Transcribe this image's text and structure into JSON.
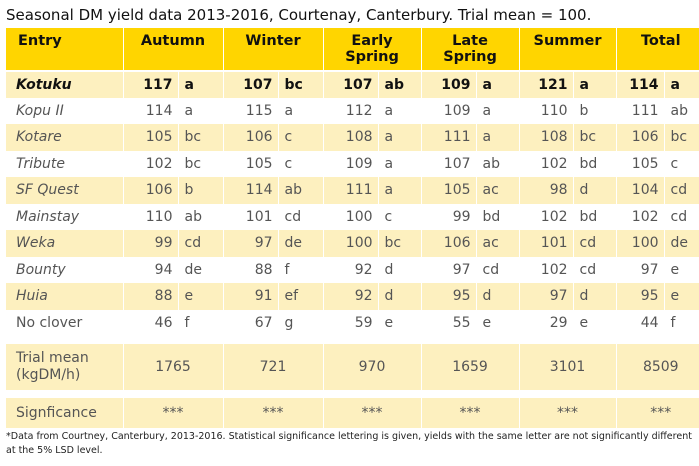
{
  "title": "Seasonal DM yield data 2013-2016, Courtenay, Canterbury. Trial mean = 100.",
  "header": {
    "entry": "Entry",
    "autumn": "Autumn",
    "winter": "Winter",
    "early_spring": [
      "Early",
      "Spring"
    ],
    "late_spring": [
      "Late",
      "Spring"
    ],
    "summer": "Summer",
    "total": "Total"
  },
  "rows": [
    {
      "entry": "Kotuku",
      "autumn": [
        "117",
        "a"
      ],
      "winter": [
        "107",
        "bc"
      ],
      "early_spring": [
        "107",
        "ab"
      ],
      "late_spring": [
        "109",
        "a"
      ],
      "summer": [
        "121",
        "a"
      ],
      "total": [
        "114",
        "a"
      ]
    },
    {
      "entry": "Kopu II",
      "autumn": [
        "114",
        "a"
      ],
      "winter": [
        "115",
        "a"
      ],
      "early_spring": [
        "112",
        "a"
      ],
      "late_spring": [
        "109",
        "a"
      ],
      "summer": [
        "110",
        "b"
      ],
      "total": [
        "111",
        "ab"
      ]
    },
    {
      "entry": "Kotare",
      "autumn": [
        "105",
        "bc"
      ],
      "winter": [
        "106",
        "c"
      ],
      "early_spring": [
        "108",
        "a"
      ],
      "late_spring": [
        "111",
        "a"
      ],
      "summer": [
        "108",
        "bc"
      ],
      "total": [
        "106",
        "bc"
      ]
    },
    {
      "entry": "Tribute",
      "autumn": [
        "102",
        "bc"
      ],
      "winter": [
        "105",
        "c"
      ],
      "early_spring": [
        "109",
        "a"
      ],
      "late_spring": [
        "107",
        "ab"
      ],
      "summer": [
        "102",
        "bd"
      ],
      "total": [
        "105",
        "c"
      ]
    },
    {
      "entry": "SF Quest",
      "autumn": [
        "106",
        "b"
      ],
      "winter": [
        "114",
        "ab"
      ],
      "early_spring": [
        "111",
        "a"
      ],
      "late_spring": [
        "105",
        "ac"
      ],
      "summer": [
        "98",
        "d"
      ],
      "total": [
        "104",
        "cd"
      ]
    },
    {
      "entry": "Mainstay",
      "autumn": [
        "110",
        "ab"
      ],
      "winter": [
        "101",
        "cd"
      ],
      "early_spring": [
        "100",
        "c"
      ],
      "late_spring": [
        "99",
        "bd"
      ],
      "summer": [
        "102",
        "bd"
      ],
      "total": [
        "102",
        "cd"
      ]
    },
    {
      "entry": "Weka",
      "autumn": [
        "99",
        "cd"
      ],
      "winter": [
        "97",
        "de"
      ],
      "early_spring": [
        "100",
        "bc"
      ],
      "late_spring": [
        "106",
        "ac"
      ],
      "summer": [
        "101",
        "cd"
      ],
      "total": [
        "100",
        "de"
      ]
    },
    {
      "entry": "Bounty",
      "autumn": [
        "94",
        "de"
      ],
      "winter": [
        "88",
        "f"
      ],
      "early_spring": [
        "92",
        "d"
      ],
      "late_spring": [
        "97",
        "cd"
      ],
      "summer": [
        "102",
        "cd"
      ],
      "total": [
        "97",
        "e"
      ]
    },
    {
      "entry": "Huia",
      "autumn": [
        "88",
        "e"
      ],
      "winter": [
        "91",
        "ef"
      ],
      "early_spring": [
        "92",
        "d"
      ],
      "late_spring": [
        "95",
        "d"
      ],
      "summer": [
        "97",
        "d"
      ],
      "total": [
        "95",
        "e"
      ]
    },
    {
      "entry": "No clover",
      "autumn": [
        "46",
        "f"
      ],
      "winter": [
        "67",
        "g"
      ],
      "early_spring": [
        "59",
        "e"
      ],
      "late_spring": [
        "55",
        "e"
      ],
      "summer": [
        "29",
        "e"
      ],
      "total": [
        "44",
        "f"
      ]
    }
  ],
  "trial_mean": {
    "label": [
      "Trial mean",
      "(kgDM/h)"
    ],
    "autumn": "1765",
    "winter": "721",
    "early_spring": "970",
    "late_spring": "1659",
    "summer": "3101",
    "total": "8509"
  },
  "significance": {
    "label": "Signficance",
    "autumn": "***",
    "winter": "***",
    "early_spring": "***",
    "late_spring": "***",
    "summer": "***",
    "total": "***"
  },
  "footnote": "*Data from Courtney, Canterbury, 2013-2016. Statistical significance lettering is given, yields with the same letter are not significantly different at the 5% LSD level.",
  "colors": {
    "header": "#ffd500",
    "band": "#fdf0bf"
  }
}
